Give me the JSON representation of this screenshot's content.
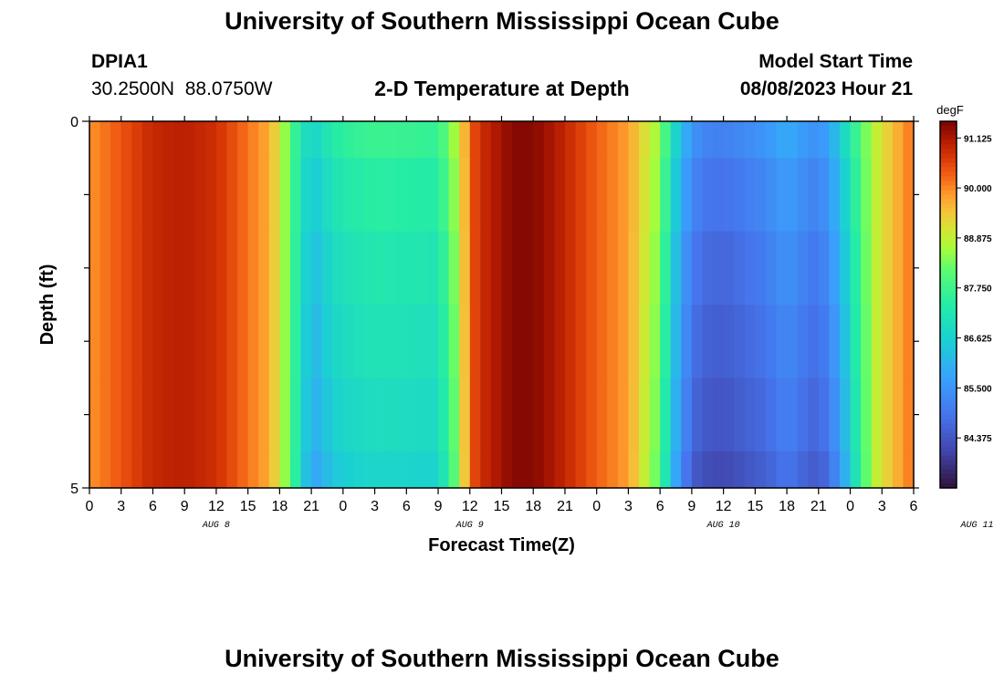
{
  "header": {
    "title": "University of Southern Mississippi Ocean Cube",
    "station_id": "DPIA1",
    "station_coords": "30.2500N  88.0750W",
    "plot_title": "2-D Temperature at Depth",
    "model_start_label": "Model Start Time",
    "model_start_value": "08/08/2023 Hour 21"
  },
  "footer": {
    "title": "University of Southern Mississippi Ocean Cube"
  },
  "chart_data": {
    "type": "heatmap",
    "title": "2-D Temperature at Depth",
    "xlabel": "Forecast Time(Z)",
    "ylabel": "Depth (ft)",
    "units": "degF",
    "x_hours_from_aug8_00z": [
      0,
      78
    ],
    "x_tick_labels": [
      "0",
      "3",
      "6",
      "9",
      "12",
      "15",
      "18",
      "21",
      "0",
      "3",
      "6",
      "9",
      "12",
      "15",
      "18",
      "21",
      "0",
      "3",
      "6",
      "9",
      "12",
      "15",
      "18",
      "21",
      "0",
      "3",
      "6"
    ],
    "day_labels": [
      "AUG 8",
      "AUG 9",
      "AUG 10",
      "AUG 11"
    ],
    "y_range": [
      0,
      5
    ],
    "y_tick_labels": [
      "0",
      "5"
    ],
    "depth_levels_ft": [
      0,
      1,
      2,
      3,
      4,
      5
    ],
    "colorbar_ticks": [
      "91.125",
      "90.000",
      "88.875",
      "87.750",
      "86.625",
      "85.500",
      "84.375"
    ],
    "colorbar_range": [
      83.25,
      91.5
    ],
    "time_hours": [
      0,
      6,
      9,
      12,
      17,
      18,
      19,
      20,
      21,
      22,
      23,
      24,
      27,
      33,
      35,
      36,
      37,
      38,
      40,
      42,
      44,
      46,
      48,
      51,
      54,
      55,
      56,
      57,
      58,
      60,
      62,
      64,
      66,
      68,
      69,
      70,
      71,
      72,
      73,
      74,
      76,
      78
    ],
    "surface_temp_degF": [
      89.9,
      90.9,
      91.0,
      90.8,
      89.7,
      89.0,
      88.0,
      87.2,
      86.6,
      87.0,
      87.3,
      87.5,
      87.7,
      87.6,
      88.9,
      90.3,
      90.8,
      91.0,
      91.4,
      91.4,
      91.1,
      90.7,
      90.3,
      89.8,
      88.5,
      87.2,
      86.2,
      85.5,
      85.2,
      85.1,
      85.3,
      85.5,
      85.9,
      85.5,
      85.4,
      85.8,
      86.4,
      87.3,
      88.0,
      88.7,
      89.5,
      90.2
    ],
    "depth_cooling_degF": [
      0,
      0.25,
      0.45,
      0.6,
      0.75,
      0.95
    ],
    "depth_cooling_weight": [
      0,
      0,
      0,
      0,
      0,
      0,
      0,
      0.3,
      1,
      1,
      1,
      1,
      1,
      1,
      0.4,
      0,
      0,
      0,
      0,
      0,
      0,
      0,
      0,
      0,
      0.5,
      0.9,
      1,
      1,
      1,
      1,
      1,
      1,
      1,
      1,
      1,
      1,
      1,
      0.8,
      0.4,
      0,
      0,
      0
    ]
  }
}
